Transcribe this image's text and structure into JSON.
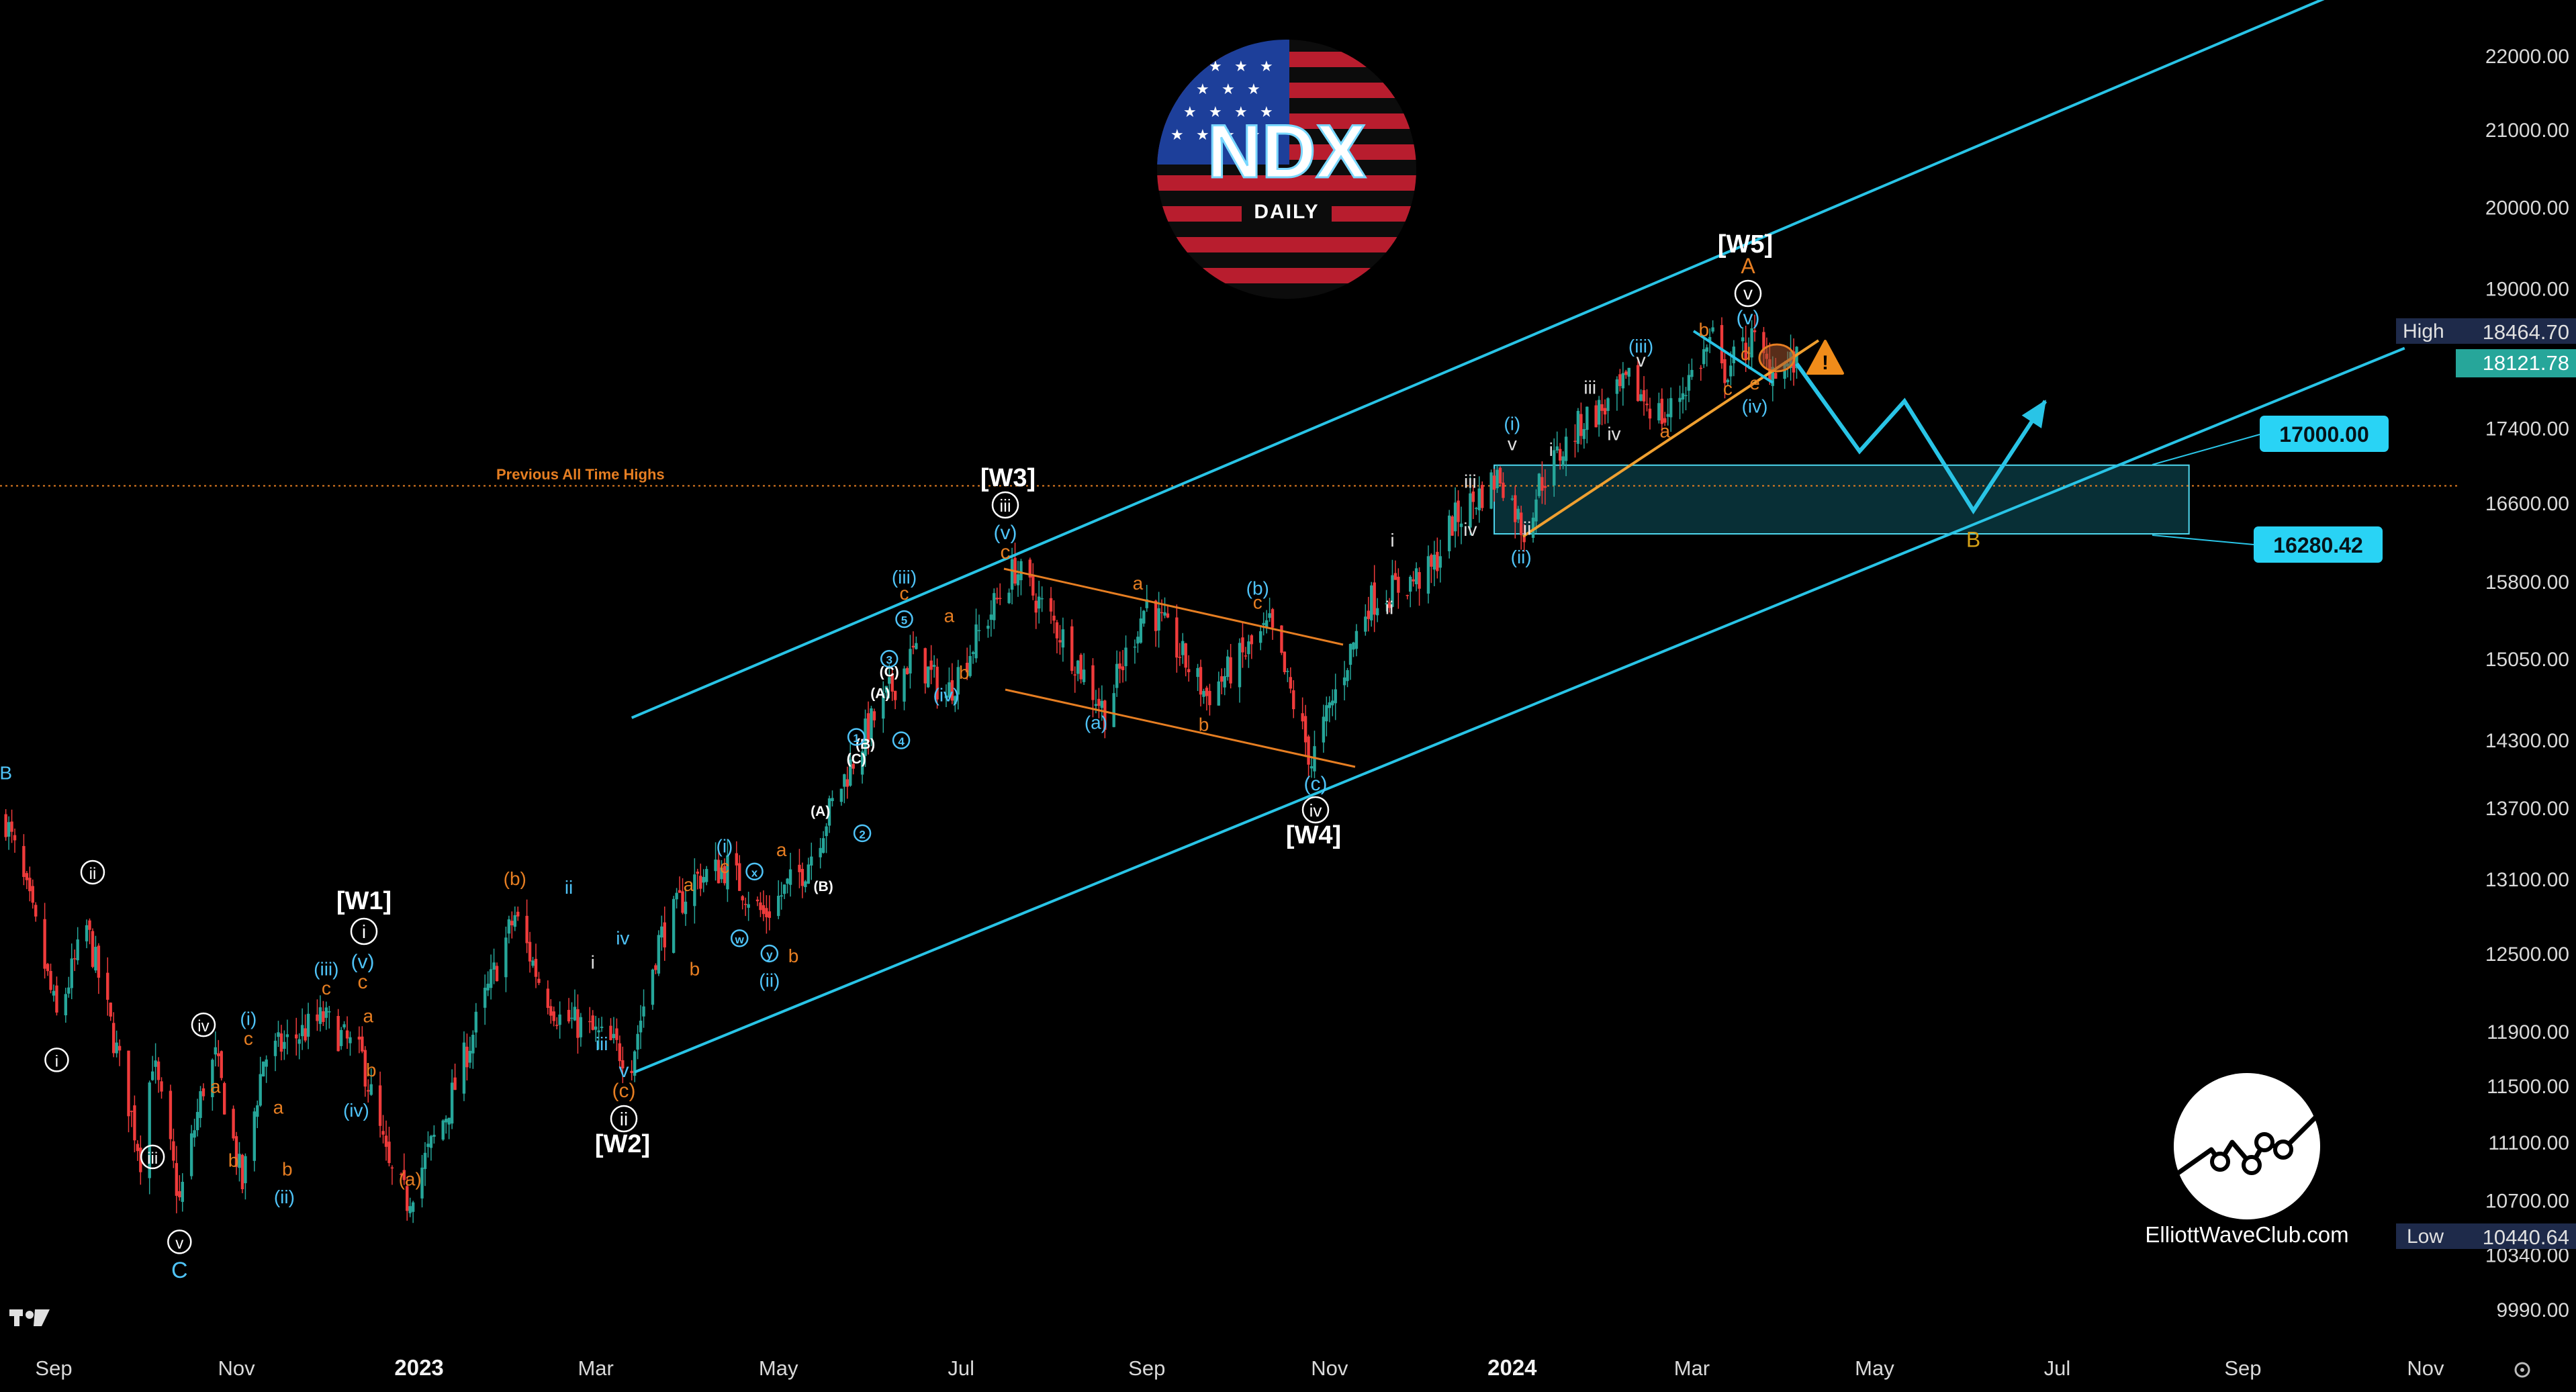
{
  "chart_data": {
    "type": "candlestick",
    "symbol": "NDX",
    "timeframe": "DAILY",
    "website": "ElliottWaveClub.com",
    "price_axis": {
      "scale": "log",
      "range": [
        9600,
        23300
      ],
      "ticks": [
        "22000.00",
        "21000.00",
        "20000.00",
        "19000.00",
        "17400.00",
        "16600.00",
        "15800.00",
        "15050.00",
        "14300.00",
        "13700.00",
        "13100.00",
        "12500.00",
        "11900.00",
        "11500.00",
        "11100.00",
        "10700.00",
        "10340.00",
        "9990.00"
      ]
    },
    "time_axis": {
      "ticks": [
        {
          "date": "2022-09-01",
          "label": "Sep",
          "year": false
        },
        {
          "date": "2022-11-01",
          "label": "Nov",
          "year": false
        },
        {
          "date": "2023-01-01",
          "label": "2023",
          "year": true
        },
        {
          "date": "2023-03-01",
          "label": "Mar",
          "year": false
        },
        {
          "date": "2023-05-01",
          "label": "May",
          "year": false
        },
        {
          "date": "2023-07-01",
          "label": "Jul",
          "year": false
        },
        {
          "date": "2023-09-01",
          "label": "Sep",
          "year": false
        },
        {
          "date": "2023-11-01",
          "label": "Nov",
          "year": false
        },
        {
          "date": "2024-01-01",
          "label": "2024",
          "year": true
        },
        {
          "date": "2024-03-01",
          "label": "Mar",
          "year": false
        },
        {
          "date": "2024-05-01",
          "label": "May",
          "year": false
        },
        {
          "date": "2024-07-01",
          "label": "Jul",
          "year": false
        },
        {
          "date": "2024-09-01",
          "label": "Sep",
          "year": false
        },
        {
          "date": "2024-11-01",
          "label": "Nov",
          "year": false
        }
      ]
    },
    "price_path": [
      [
        "2022-08-16",
        13600
      ],
      [
        "2022-08-26",
        12700
      ],
      [
        "2022-09-02",
        12000
      ],
      [
        "2022-09-12",
        12700
      ],
      [
        "2022-09-30",
        11000
      ],
      [
        "2022-10-04",
        11700
      ],
      [
        "2022-10-13",
        10690
      ],
      [
        "2022-10-21",
        11500
      ],
      [
        "2022-10-25",
        11700
      ],
      [
        "2022-11-03",
        10800
      ],
      [
        "2022-11-10",
        11700
      ],
      [
        "2022-11-30",
        12000
      ],
      [
        "2022-12-13",
        11700
      ],
      [
        "2022-12-22",
        10900
      ],
      [
        "2022-12-28",
        10700
      ],
      [
        "2023-01-10",
        11300
      ],
      [
        "2023-02-02",
        12800
      ],
      [
        "2023-02-10",
        12300
      ],
      [
        "2023-02-17",
        12000
      ],
      [
        "2023-02-24",
        11950
      ],
      [
        "2023-03-13",
        11700
      ],
      [
        "2023-03-22",
        12600
      ],
      [
        "2023-04-03",
        13100
      ],
      [
        "2023-04-14",
        13200
      ],
      [
        "2023-04-26",
        12800
      ],
      [
        "2023-05-10",
        13200
      ],
      [
        "2023-05-22",
        13900
      ],
      [
        "2023-05-31",
        14400
      ],
      [
        "2023-06-15",
        15100
      ],
      [
        "2023-06-26",
        14700
      ],
      [
        "2023-07-19",
        15930
      ],
      [
        "2023-08-03",
        15300
      ],
      [
        "2023-08-18",
        14550
      ],
      [
        "2023-09-01",
        15600
      ],
      [
        "2023-09-21",
        14700
      ],
      [
        "2023-10-12",
        15350
      ],
      [
        "2023-10-26",
        14100
      ],
      [
        "2023-11-14",
        15600
      ],
      [
        "2023-12-05",
        15900
      ],
      [
        "2023-12-12",
        16400
      ],
      [
        "2023-12-28",
        16900
      ],
      [
        "2024-01-05",
        16300
      ],
      [
        "2024-01-10",
        16800
      ],
      [
        "2024-01-25",
        17500
      ],
      [
        "2024-02-02",
        17650
      ],
      [
        "2024-02-09",
        17900
      ],
      [
        "2024-02-21",
        17500
      ],
      [
        "2024-03-08",
        18400
      ],
      [
        "2024-03-11",
        18000
      ],
      [
        "2024-03-21",
        18400
      ],
      [
        "2024-03-26",
        18100
      ],
      [
        "2024-04-05",
        18121.78
      ]
    ],
    "channel": {
      "upper": [
        [
          "2023-03-13",
          14500
        ],
        [
          "2024-10-25",
          23300
        ]
      ],
      "lower": [
        [
          "2023-03-14",
          11600
        ],
        [
          "2024-10-25",
          18300
        ]
      ]
    },
    "horizontal_level": {
      "label": "Previous All Time Highs",
      "value": 16780,
      "color": "#e67e22"
    },
    "target_zone": {
      "high": 17000.0,
      "low": 16280.42,
      "high_label": "17000.00",
      "low_label": "16280.42",
      "from": "2023-12-26",
      "to": "2024-08-14"
    },
    "projection": [
      [
        "2024-04-05",
        18121.78
      ],
      [
        "2024-04-26",
        17150
      ],
      [
        "2024-05-11",
        17700
      ],
      [
        "2024-06-03",
        16520
      ],
      [
        "2024-06-27",
        17700
      ]
    ],
    "last_price": {
      "value": 18121.78,
      "label": "18121.78",
      "color": "#26a69a"
    },
    "period_high": {
      "tag": "High",
      "value": 18464.7,
      "label": "18464.70"
    },
    "period_low": {
      "tag": "Low",
      "value": 10440.64,
      "label": "10440.64"
    },
    "major_waves": [
      {
        "label": "[W1]",
        "sub": "i",
        "sub2": "(v)",
        "sub3": "c"
      },
      {
        "label": "[W2]",
        "sub": "ii",
        "sub2": "v",
        "sub3": "(c)"
      },
      {
        "label": "[W3]",
        "sub": "iii",
        "sub2": "(v)",
        "sub3": "c"
      },
      {
        "label": "[W4]",
        "sub": "iv",
        "sub2": "(c)"
      },
      {
        "label": "[W5]",
        "sub": "v",
        "sub2": "(v)",
        "sub3": "A"
      }
    ],
    "projection_label": "B",
    "annotations": [
      {
        "t": "B",
        "date": "2022-08-16",
        "p": 13950,
        "c": "#4fc3f7"
      },
      {
        "t": "ii",
        "date": "2022-09-14",
        "p": 13100,
        "c": "#fff",
        "circ": true
      },
      {
        "t": "i",
        "date": "2022-09-02",
        "p": 11640,
        "c": "#fff",
        "circ": true
      },
      {
        "t": "iii",
        "date": "2022-10-04",
        "p": 10950,
        "c": "#fff",
        "circ": true
      },
      {
        "t": "iv",
        "date": "2022-10-21",
        "p": 11900,
        "c": "#fff",
        "circ": true
      },
      {
        "t": "v",
        "date": "2022-10-13",
        "p": 10380,
        "c": "#fff",
        "circ": true
      },
      {
        "t": "C",
        "date": "2022-10-13",
        "p": 10190,
        "c": "#4fc3f7",
        "big": true
      },
      {
        "t": "a",
        "date": "2022-10-25",
        "p": 11450,
        "c": "#e67e22"
      },
      {
        "t": "b",
        "date": "2022-10-31",
        "p": 10930,
        "c": "#e67e22"
      },
      {
        "t": "(i)",
        "date": "2022-11-05",
        "p": 11950,
        "c": "#4fc3f7"
      },
      {
        "t": "c",
        "date": "2022-11-05",
        "p": 11800,
        "c": "#e67e22"
      },
      {
        "t": "a",
        "date": "2022-11-15",
        "p": 11300,
        "c": "#e67e22"
      },
      {
        "t": "b",
        "date": "2022-11-18",
        "p": 10870,
        "c": "#e67e22"
      },
      {
        "t": "(ii)",
        "date": "2022-11-17",
        "p": 10680,
        "c": "#4fc3f7"
      },
      {
        "t": "(iii)",
        "date": "2022-12-01",
        "p": 12330,
        "c": "#4fc3f7"
      },
      {
        "t": "c",
        "date": "2022-12-01",
        "p": 12180,
        "c": "#e67e22"
      },
      {
        "t": "a",
        "date": "2022-12-15",
        "p": 11970,
        "c": "#e67e22"
      },
      {
        "t": "b",
        "date": "2022-12-16",
        "p": 11570,
        "c": "#e67e22"
      },
      {
        "t": "(iv)",
        "date": "2022-12-11",
        "p": 11280,
        "c": "#4fc3f7"
      },
      {
        "t": "(a)",
        "date": "2022-12-29",
        "p": 10800,
        "c": "#e67e22"
      },
      {
        "t": "(b)",
        "date": "2023-02-02",
        "p": 13050,
        "c": "#e67e22"
      },
      {
        "t": "ii",
        "date": "2023-02-20",
        "p": 12980,
        "c": "#4fc3f7"
      },
      {
        "t": "i",
        "date": "2023-02-28",
        "p": 12380,
        "c": "#e0e0e0"
      },
      {
        "t": "iii",
        "date": "2023-03-03",
        "p": 11760,
        "c": "#4fc3f7"
      },
      {
        "t": "iv",
        "date": "2023-03-10",
        "p": 12570,
        "c": "#4fc3f7"
      },
      {
        "t": "a",
        "date": "2023-04-01",
        "p": 13000,
        "c": "#e67e22"
      },
      {
        "t": "b",
        "date": "2023-04-03",
        "p": 12330,
        "c": "#e67e22"
      },
      {
        "t": "(i)",
        "date": "2023-04-13",
        "p": 13320,
        "c": "#4fc3f7"
      },
      {
        "t": "c",
        "date": "2023-04-13",
        "p": 13150,
        "c": "#e67e22"
      },
      {
        "t": "a",
        "date": "2023-05-02",
        "p": 13290,
        "c": "#e67e22"
      },
      {
        "t": "b",
        "date": "2023-05-06",
        "p": 12430,
        "c": "#e67e22"
      },
      {
        "t": "(ii)",
        "date": "2023-04-28",
        "p": 12240,
        "c": "#4fc3f7"
      },
      {
        "t": "x",
        "date": "2023-04-23",
        "p": 13120,
        "c": "#4fc3f7",
        "circ": true,
        "small": true
      },
      {
        "t": "w",
        "date": "2023-04-18",
        "p": 12580,
        "c": "#4fc3f7",
        "circ": true,
        "small": true
      },
      {
        "t": "y",
        "date": "2023-04-28",
        "p": 12460,
        "c": "#4fc3f7",
        "circ": true,
        "small": true
      },
      {
        "t": "(A)",
        "date": "2023-05-15",
        "p": 13630,
        "c": "#fff",
        "small": true
      },
      {
        "t": "(B)",
        "date": "2023-05-16",
        "p": 13000,
        "c": "#fff",
        "small": true
      },
      {
        "t": "(C)",
        "date": "2023-05-27",
        "p": 14090,
        "c": "#fff",
        "small": true
      },
      {
        "t": "(A)",
        "date": "2023-06-04",
        "p": 14680,
        "c": "#fff",
        "small": true
      },
      {
        "t": "(B)",
        "date": "2023-05-30",
        "p": 14220,
        "c": "#fff",
        "small": true
      },
      {
        "t": "(C)",
        "date": "2023-06-07",
        "p": 14880,
        "c": "#fff",
        "small": true
      },
      {
        "t": "1",
        "date": "2023-05-27",
        "p": 14280,
        "c": "#4fc3f7",
        "circ": true,
        "small": true
      },
      {
        "t": "2",
        "date": "2023-05-29",
        "p": 13440,
        "c": "#4fc3f7",
        "circ": true,
        "small": true
      },
      {
        "t": "3",
        "date": "2023-06-07",
        "p": 15000,
        "c": "#4fc3f7",
        "circ": true,
        "small": true
      },
      {
        "t": "4",
        "date": "2023-06-11",
        "p": 14250,
        "c": "#4fc3f7",
        "circ": true,
        "small": true
      },
      {
        "t": "5",
        "date": "2023-06-12",
        "p": 15380,
        "c": "#4fc3f7",
        "circ": true,
        "small": true
      },
      {
        "t": "(iii)",
        "date": "2023-06-12",
        "p": 15780,
        "c": "#4fc3f7"
      },
      {
        "t": "c",
        "date": "2023-06-12",
        "p": 15620,
        "c": "#e67e22"
      },
      {
        "t": "(iv)",
        "date": "2023-06-26",
        "p": 14650,
        "c": "#4fc3f7"
      },
      {
        "t": "a",
        "date": "2023-06-27",
        "p": 15400,
        "c": "#e67e22"
      },
      {
        "t": "b",
        "date": "2023-07-02",
        "p": 14860,
        "c": "#e67e22"
      },
      {
        "t": "(a)",
        "date": "2023-08-15",
        "p": 14400,
        "c": "#4fc3f7"
      },
      {
        "t": "a",
        "date": "2023-08-29",
        "p": 15720,
        "c": "#e67e22"
      },
      {
        "t": "b",
        "date": "2023-09-20",
        "p": 14380,
        "c": "#e67e22"
      },
      {
        "t": "(b)",
        "date": "2023-10-08",
        "p": 15670,
        "c": "#4fc3f7"
      },
      {
        "t": "c",
        "date": "2023-10-08",
        "p": 15530,
        "c": "#e67e22"
      },
      {
        "t": "ii",
        "date": "2023-11-21",
        "p": 15480,
        "c": "#e0e0e0"
      },
      {
        "t": "i",
        "date": "2023-11-22",
        "p": 16150,
        "c": "#e0e0e0"
      },
      {
        "t": "iii",
        "date": "2023-12-18",
        "p": 16760,
        "c": "#e0e0e0"
      },
      {
        "t": "iv",
        "date": "2023-12-18",
        "p": 16260,
        "c": "#e0e0e0"
      },
      {
        "t": "(i)",
        "date": "2024-01-01",
        "p": 17380,
        "c": "#4fc3f7"
      },
      {
        "t": "v",
        "date": "2024-01-01",
        "p": 17160,
        "c": "#e0e0e0"
      },
      {
        "t": "ii",
        "date": "2024-01-06",
        "p": 16270,
        "c": "#e0e0e0"
      },
      {
        "t": "(ii)",
        "date": "2024-01-04",
        "p": 15980,
        "c": "#4fc3f7"
      },
      {
        "t": "i",
        "date": "2024-01-14",
        "p": 17100,
        "c": "#e0e0e0"
      },
      {
        "t": "iii",
        "date": "2024-01-27",
        "p": 17780,
        "c": "#e0e0e0"
      },
      {
        "t": "iv",
        "date": "2024-02-04",
        "p": 17270,
        "c": "#e0e0e0"
      },
      {
        "t": "(iii)",
        "date": "2024-02-13",
        "p": 18250,
        "c": "#4fc3f7"
      },
      {
        "t": "v",
        "date": "2024-02-13",
        "p": 18090,
        "c": "#e0e0e0"
      },
      {
        "t": "a",
        "date": "2024-02-21",
        "p": 17300,
        "c": "#e67e22"
      },
      {
        "t": "b",
        "date": "2024-03-05",
        "p": 18440,
        "c": "#e67e22"
      },
      {
        "t": "d",
        "date": "2024-03-19",
        "p": 18160,
        "c": "#e67e22"
      },
      {
        "t": "c",
        "date": "2024-03-13",
        "p": 17770,
        "c": "#e67e22"
      },
      {
        "t": "e",
        "date": "2024-03-22",
        "p": 17830,
        "c": "#e67e22"
      },
      {
        "t": "(iv)",
        "date": "2024-03-22",
        "p": 17570,
        "c": "#4fc3f7"
      }
    ]
  }
}
